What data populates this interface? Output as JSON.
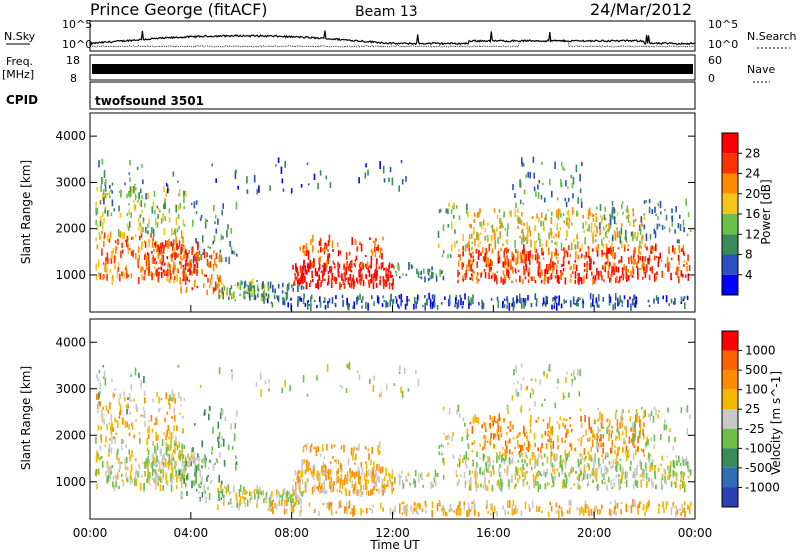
{
  "header": {
    "station": "Prince George (fitACF)",
    "beam": "Beam 13",
    "date": "24/Mar/2012"
  },
  "top_panels": {
    "nsky_label": "N.Sky",
    "nsearch_label": "N.Search",
    "nsky_ticks": [
      "10^5",
      "10^0"
    ],
    "nsearch_ticks": [
      "10^5",
      "10^0"
    ],
    "freq_label": "Freq.",
    "freq_unit": "[MHz]",
    "freq_ticks": [
      "18",
      "8"
    ],
    "nave_label": "Nave",
    "nave_ticks": [
      "60",
      "0"
    ],
    "cpid_label": "CPID",
    "cpid_value": "twofsound 3501"
  },
  "colors": {
    "power_scale": [
      "#0000ff",
      "#2a52be",
      "#3a8a5a",
      "#6cbf4a",
      "#f5c518",
      "#ff8c00",
      "#ff3300",
      "#ff0000"
    ],
    "velocity_scale": [
      "#2a40b0",
      "#2f6db6",
      "#3a8a5a",
      "#6cbf4a",
      "#c8c8c8",
      "#f5b800",
      "#ff8c00",
      "#ff6000",
      "#ff0000"
    ]
  },
  "chart_data": [
    {
      "type": "heatmap",
      "title": "",
      "xlabel": "Time UT",
      "ylabel": "Slant Range [km]",
      "xlim": [
        "00:00",
        "24:00"
      ],
      "ylim": [
        200,
        4500
      ],
      "x_ticks": [
        "00:00",
        "04:00",
        "08:00",
        "12:00",
        "16:00",
        "20:00",
        "00:00"
      ],
      "y_ticks": [
        1000,
        2000,
        3000,
        4000
      ],
      "colorbar": {
        "label": "Power [dB]",
        "range": [
          0,
          30
        ],
        "ticks": [
          4,
          8,
          12,
          16,
          20,
          24,
          28
        ]
      }
    },
    {
      "type": "heatmap",
      "title": "",
      "xlabel": "Time UT",
      "ylabel": "Slant Range [km]",
      "xlim": [
        "00:00",
        "24:00"
      ],
      "ylim": [
        200,
        4500
      ],
      "x_ticks": [
        "00:00",
        "04:00",
        "08:00",
        "12:00",
        "16:00",
        "20:00",
        "00:00"
      ],
      "y_ticks": [
        1000,
        2000,
        3000,
        4000
      ],
      "colorbar": {
        "label": "Velocity [m s^-1]",
        "ticks": [
          1000,
          500,
          100,
          25,
          -25,
          -100,
          -500,
          -1000
        ]
      }
    }
  ]
}
